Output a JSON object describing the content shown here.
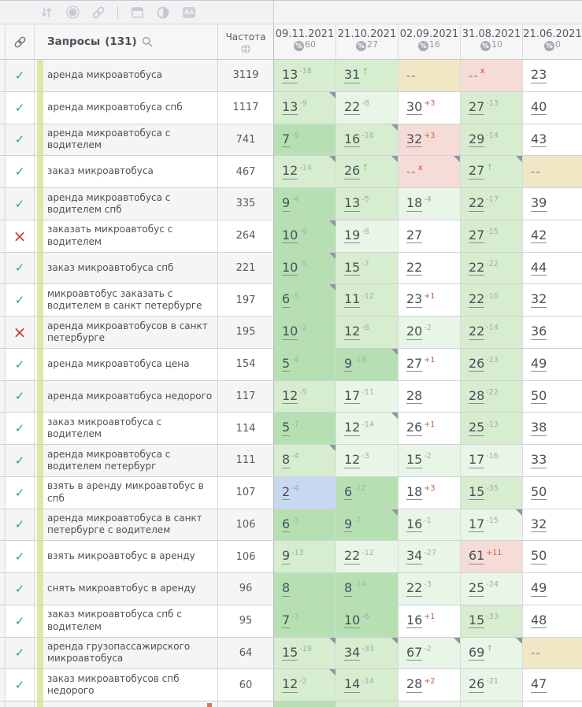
{
  "toolbar": {
    "icons": [
      "sort-icon",
      "status-circle-icon",
      "link-icon",
      "panel-icon",
      "contrast-icon",
      "text-format-icon"
    ]
  },
  "header": {
    "queries_label": "Запросы",
    "queries_count": "(131)",
    "frequency_label": "Частота",
    "dates": [
      {
        "date": "09.11.2021",
        "pct": "60"
      },
      {
        "date": "21.10.2021",
        "pct": "27"
      },
      {
        "date": "02.09.2021",
        "pct": "16"
      },
      {
        "date": "31.08.2021",
        "pct": "10"
      },
      {
        "date": "21.06.2021",
        "pct": "0"
      }
    ]
  },
  "palette": {
    "g2": "#b7e0b2",
    "g1": "#d6edd0",
    "g0": "#e9f5e6",
    "b": "#c7d8f0",
    "y": "#f0e8c4",
    "p": "#f6dcd6",
    "w": "#ffffff",
    "check_green": "#36a266",
    "cross_red": "#c23b22",
    "change_up_gray": "#9fb0a0",
    "change_down_red": "#c2604b",
    "lime_strip": "#dde8a6"
  },
  "rows": [
    {
      "check": "ok",
      "keyword": "аренда микроавтобуса",
      "freq": "3119",
      "cells": [
        {
          "v": "13",
          "s": "-18",
          "t": "up",
          "bg": "g1"
        },
        {
          "v": "31",
          "s": "↑",
          "t": "in",
          "bg": "g1"
        },
        {
          "v": "--",
          "bg": "y"
        },
        {
          "v": "--",
          "s": "x",
          "t": "out",
          "bg": "p"
        },
        {
          "v": "23",
          "bg": "w"
        }
      ]
    },
    {
      "check": "ok",
      "keyword": "аренда микроавтобуса спб",
      "freq": "1117",
      "cells": [
        {
          "v": "13",
          "s": "-9",
          "t": "up",
          "bg": "g1",
          "n": 1
        },
        {
          "v": "22",
          "s": "-8",
          "t": "up",
          "bg": "g0"
        },
        {
          "v": "30",
          "s": "+3",
          "t": "down",
          "bg": "w"
        },
        {
          "v": "27",
          "s": "-13",
          "t": "up",
          "bg": "g1"
        },
        {
          "v": "40",
          "bg": "w"
        }
      ]
    },
    {
      "check": "ok",
      "keyword": "аренда микроавтобуса с водителем",
      "freq": "741",
      "cells": [
        {
          "v": "7",
          "s": "-9",
          "t": "up",
          "bg": "g2"
        },
        {
          "v": "16",
          "s": "-16",
          "t": "up",
          "bg": "g1",
          "n": 1
        },
        {
          "v": "32",
          "s": "+3",
          "t": "down",
          "bg": "p"
        },
        {
          "v": "29",
          "s": "-14",
          "t": "up",
          "bg": "g1"
        },
        {
          "v": "43",
          "bg": "w"
        }
      ]
    },
    {
      "check": "ok",
      "keyword": "заказ микроавтобуса",
      "freq": "467",
      "cells": [
        {
          "v": "12",
          "s": "-14",
          "t": "up",
          "bg": "g1",
          "n": 1
        },
        {
          "v": "26",
          "s": "↑",
          "t": "in",
          "bg": "g1",
          "n": 1
        },
        {
          "v": "--",
          "s": "x",
          "t": "out",
          "bg": "p",
          "n": 1
        },
        {
          "v": "27",
          "s": "↑",
          "t": "in",
          "bg": "g1",
          "n": 1
        },
        {
          "v": "--",
          "bg": "y"
        }
      ]
    },
    {
      "check": "ok",
      "keyword": "аренда микроавтобуса с водителем спб",
      "freq": "335",
      "cells": [
        {
          "v": "9",
          "s": "-4",
          "t": "up",
          "bg": "g2"
        },
        {
          "v": "13",
          "s": "-5",
          "t": "up",
          "bg": "g1"
        },
        {
          "v": "18",
          "s": "-4",
          "t": "up",
          "bg": "g0"
        },
        {
          "v": "22",
          "s": "-17",
          "t": "up",
          "bg": "g1"
        },
        {
          "v": "39",
          "bg": "w"
        }
      ]
    },
    {
      "check": "fail",
      "keyword": "заказать микроавтобус с водителем",
      "freq": "264",
      "cells": [
        {
          "v": "10",
          "s": "-9",
          "t": "up",
          "bg": "g2",
          "n": 1
        },
        {
          "v": "19",
          "s": "-8",
          "t": "up",
          "bg": "g0"
        },
        {
          "v": "27",
          "bg": "w"
        },
        {
          "v": "27",
          "s": "-15",
          "t": "up",
          "bg": "g1"
        },
        {
          "v": "42",
          "bg": "w"
        }
      ]
    },
    {
      "check": "ok",
      "keyword": "заказ микроавтобуса спб",
      "freq": "221",
      "cells": [
        {
          "v": "10",
          "s": "-5",
          "t": "up",
          "bg": "g2",
          "n": 1
        },
        {
          "v": "15",
          "s": "-7",
          "t": "up",
          "bg": "g1"
        },
        {
          "v": "22",
          "bg": "w"
        },
        {
          "v": "22",
          "s": "-22",
          "t": "up",
          "bg": "g1"
        },
        {
          "v": "44",
          "bg": "w"
        }
      ]
    },
    {
      "check": "ok",
      "keyword": "микроавтобус заказать с водителем в санкт петербурге",
      "freq": "197",
      "cells": [
        {
          "v": "6",
          "s": "-5",
          "t": "up",
          "bg": "g2",
          "n": 1
        },
        {
          "v": "11",
          "s": "-12",
          "t": "up",
          "bg": "g1"
        },
        {
          "v": "23",
          "s": "+1",
          "t": "down",
          "bg": "w"
        },
        {
          "v": "22",
          "s": "-10",
          "t": "up",
          "bg": "g1"
        },
        {
          "v": "32",
          "bg": "w"
        }
      ]
    },
    {
      "check": "fail",
      "keyword": "аренда микроавтобусов в санкт петербурге",
      "freq": "195",
      "cells": [
        {
          "v": "10",
          "s": "-2",
          "t": "up",
          "bg": "g2"
        },
        {
          "v": "12",
          "s": "-8",
          "t": "up",
          "bg": "g1"
        },
        {
          "v": "20",
          "s": "-2",
          "t": "up",
          "bg": "g0"
        },
        {
          "v": "22",
          "s": "-14",
          "t": "up",
          "bg": "g1"
        },
        {
          "v": "36",
          "bg": "w"
        }
      ]
    },
    {
      "check": "ok",
      "keyword": "аренда микроавтобуса цена",
      "freq": "154",
      "cells": [
        {
          "v": "5",
          "s": "-4",
          "t": "up",
          "bg": "g2"
        },
        {
          "v": "9",
          "s": "-18",
          "t": "up",
          "bg": "g2",
          "n": 1
        },
        {
          "v": "27",
          "s": "+1",
          "t": "down",
          "bg": "w"
        },
        {
          "v": "26",
          "s": "-23",
          "t": "up",
          "bg": "g1"
        },
        {
          "v": "49",
          "bg": "w"
        }
      ]
    },
    {
      "check": "ok",
      "keyword": "аренда микроавтобуса недорого",
      "freq": "117",
      "cells": [
        {
          "v": "12",
          "s": "-5",
          "t": "up",
          "bg": "g1"
        },
        {
          "v": "17",
          "s": "-11",
          "t": "up",
          "bg": "g0"
        },
        {
          "v": "28",
          "bg": "w"
        },
        {
          "v": "28",
          "s": "-22",
          "t": "up",
          "bg": "g1"
        },
        {
          "v": "50",
          "bg": "w"
        }
      ]
    },
    {
      "check": "ok",
      "keyword": "заказ микроавтобуса с водителем",
      "freq": "114",
      "cells": [
        {
          "v": "5",
          "s": "-7",
          "t": "up",
          "bg": "g2"
        },
        {
          "v": "12",
          "s": "-14",
          "t": "up",
          "bg": "g0",
          "n": 1
        },
        {
          "v": "26",
          "s": "+1",
          "t": "down",
          "bg": "w"
        },
        {
          "v": "25",
          "s": "-13",
          "t": "up",
          "bg": "g1"
        },
        {
          "v": "38",
          "bg": "w"
        }
      ]
    },
    {
      "check": "ok",
      "keyword": "аренда микроавтобуса с водителем петербург",
      "freq": "111",
      "cells": [
        {
          "v": "8",
          "s": "-4",
          "t": "up",
          "bg": "g1",
          "n": 1
        },
        {
          "v": "12",
          "s": "-3",
          "t": "up",
          "bg": "g0"
        },
        {
          "v": "15",
          "s": "-2",
          "t": "up",
          "bg": "g0"
        },
        {
          "v": "17",
          "s": "-16",
          "t": "up",
          "bg": "g0"
        },
        {
          "v": "33",
          "bg": "w"
        }
      ]
    },
    {
      "check": "ok",
      "keyword": "взять в аренду микроавтобус в спб",
      "freq": "107",
      "cells": [
        {
          "v": "2",
          "s": "-4",
          "t": "up",
          "bg": "b"
        },
        {
          "v": "6",
          "s": "-12",
          "t": "up",
          "bg": "g2"
        },
        {
          "v": "18",
          "s": "+3",
          "t": "down",
          "bg": "w"
        },
        {
          "v": "15",
          "s": "-35",
          "t": "up",
          "bg": "g1"
        },
        {
          "v": "50",
          "bg": "w"
        }
      ]
    },
    {
      "check": "ok",
      "keyword": "аренда микроавтобуса в санкт петербурге с водителем",
      "freq": "106",
      "cells": [
        {
          "v": "6",
          "s": "-3",
          "t": "up",
          "bg": "g2"
        },
        {
          "v": "9",
          "s": "-7",
          "t": "up",
          "bg": "g2",
          "n": 1
        },
        {
          "v": "16",
          "s": "-1",
          "t": "up",
          "bg": "g0"
        },
        {
          "v": "17",
          "s": "-15",
          "t": "up",
          "bg": "g0",
          "n": 1
        },
        {
          "v": "32",
          "bg": "w"
        }
      ]
    },
    {
      "check": "ok",
      "keyword": "взять микроавтобус в аренду",
      "freq": "106",
      "cells": [
        {
          "v": "9",
          "s": "-13",
          "t": "up",
          "bg": "g1"
        },
        {
          "v": "22",
          "s": "-12",
          "t": "up",
          "bg": "g0"
        },
        {
          "v": "34",
          "s": "-27",
          "t": "up",
          "bg": "g0"
        },
        {
          "v": "61",
          "s": "+11",
          "t": "down",
          "bg": "p"
        },
        {
          "v": "50",
          "bg": "w"
        }
      ]
    },
    {
      "check": "ok",
      "keyword": "снять микроавтобус в аренду",
      "freq": "96",
      "cells": [
        {
          "v": "8",
          "bg": "g2"
        },
        {
          "v": "8",
          "s": "-14",
          "t": "up",
          "bg": "g2"
        },
        {
          "v": "22",
          "s": "-3",
          "t": "up",
          "bg": "g0"
        },
        {
          "v": "25",
          "s": "-24",
          "t": "up",
          "bg": "g0"
        },
        {
          "v": "49",
          "bg": "w"
        }
      ]
    },
    {
      "check": "ok",
      "keyword": "заказ микроавтобуса спб с водителем",
      "freq": "95",
      "cells": [
        {
          "v": "7",
          "s": "-3",
          "t": "up",
          "bg": "g2"
        },
        {
          "v": "10",
          "s": "-6",
          "t": "up",
          "bg": "g2"
        },
        {
          "v": "16",
          "s": "+1",
          "t": "down",
          "bg": "w"
        },
        {
          "v": "15",
          "s": "-33",
          "t": "up",
          "bg": "g1"
        },
        {
          "v": "48",
          "bg": "w"
        }
      ]
    },
    {
      "check": "ok",
      "keyword": "аренда грузопассажирского микроавтобуса",
      "freq": "64",
      "cells": [
        {
          "v": "15",
          "s": "-19",
          "t": "up",
          "bg": "g1",
          "n": 1
        },
        {
          "v": "34",
          "s": "-33",
          "t": "up",
          "bg": "g1",
          "n": 1
        },
        {
          "v": "67",
          "s": "-2",
          "t": "up",
          "bg": "g0",
          "n": 1
        },
        {
          "v": "69",
          "s": "↑",
          "t": "in",
          "bg": "g0",
          "n": 1
        },
        {
          "v": "--",
          "bg": "y"
        }
      ]
    },
    {
      "check": "ok",
      "keyword": "заказ микроавтобусов спб недорого",
      "freq": "60",
      "cells": [
        {
          "v": "12",
          "s": "-2",
          "t": "up",
          "bg": "g1",
          "n": 1
        },
        {
          "v": "14",
          "s": "-14",
          "t": "up",
          "bg": "g1"
        },
        {
          "v": "28",
          "s": "+2",
          "t": "down",
          "bg": "w"
        },
        {
          "v": "26",
          "s": "-21",
          "t": "up",
          "bg": "g0"
        },
        {
          "v": "47",
          "bg": "w"
        }
      ]
    }
  ],
  "partial_row": {
    "cells": [
      "g2",
      "g1",
      "g0",
      "g0",
      "w"
    ]
  }
}
